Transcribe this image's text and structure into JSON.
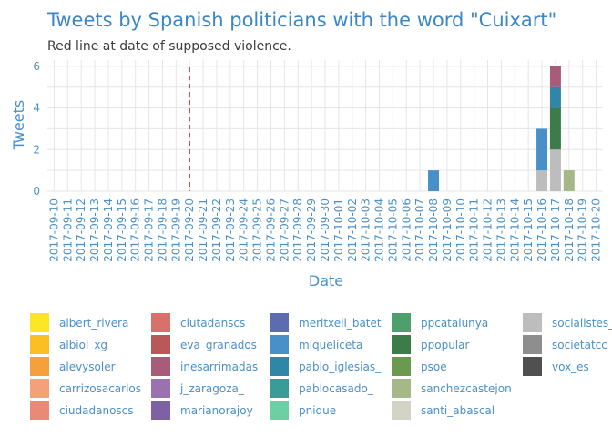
{
  "chart_data": {
    "type": "bar",
    "stacked": true,
    "title": "Tweets by Spanish politicians with the word \"Cuixart\"",
    "subtitle": "Red line at date of supposed violence.",
    "xlabel": "Date",
    "ylabel": "Tweets",
    "ylim": [
      0,
      6.3
    ],
    "yticks": [
      0,
      2,
      4,
      6
    ],
    "grid": true,
    "legend_placement": "bottom",
    "reference_line": {
      "date": "2017-09-20",
      "color": "#e8453c"
    },
    "categories": [
      "2017-09-10",
      "2017-09-11",
      "2017-09-12",
      "2017-09-13",
      "2017-09-14",
      "2017-09-15",
      "2017-09-16",
      "2017-09-17",
      "2017-09-18",
      "2017-09-19",
      "2017-09-20",
      "2017-09-21",
      "2017-09-22",
      "2017-09-23",
      "2017-09-24",
      "2017-09-25",
      "2017-09-26",
      "2017-09-27",
      "2017-09-28",
      "2017-09-29",
      "2017-09-30",
      "2017-10-01",
      "2017-10-02",
      "2017-10-03",
      "2017-10-04",
      "2017-10-05",
      "2017-10-06",
      "2017-10-07",
      "2017-10-08",
      "2017-10-09",
      "2017-10-10",
      "2017-10-11",
      "2017-10-12",
      "2017-10-13",
      "2017-10-14",
      "2017-10-15",
      "2017-10-16",
      "2017-10-17",
      "2017-10-18",
      "2017-10-19",
      "2017-10-20"
    ],
    "bars": [
      {
        "date": "2017-10-08",
        "stack": [
          {
            "name": "miqueliceta",
            "value": 1
          }
        ]
      },
      {
        "date": "2017-10-16",
        "stack": [
          {
            "name": "socialistes_",
            "value": 1
          },
          {
            "name": "miqueliceta",
            "value": 2
          }
        ]
      },
      {
        "date": "2017-10-17",
        "stack": [
          {
            "name": "socialistes_",
            "value": 2
          },
          {
            "name": "ppopular",
            "value": 2
          },
          {
            "name": "pablo_iglesias_",
            "value": 1
          },
          {
            "name": "inesarrimadas",
            "value": 1
          }
        ]
      },
      {
        "date": "2017-10-18",
        "stack": [
          {
            "name": "sanchezcastejon",
            "value": 1
          }
        ]
      }
    ],
    "series": [
      {
        "name": "albert_rivera",
        "color": "#fde725"
      },
      {
        "name": "albiol_xg",
        "color": "#fbbf24"
      },
      {
        "name": "alevysoler",
        "color": "#f5a03a"
      },
      {
        "name": "carrizosacarlos",
        "color": "#f4a07a"
      },
      {
        "name": "ciudadanoscs",
        "color": "#e98a78"
      },
      {
        "name": "ciutadanscs",
        "color": "#d9706a"
      },
      {
        "name": "eva_granados",
        "color": "#b85858"
      },
      {
        "name": "inesarrimadas",
        "color": "#a85c7a"
      },
      {
        "name": "j_zaragoza_",
        "color": "#9b72b0"
      },
      {
        "name": "marianorajoy",
        "color": "#7e60a4"
      },
      {
        "name": "meritxell_batet",
        "color": "#5b6db0"
      },
      {
        "name": "miqueliceta",
        "color": "#4a90c8"
      },
      {
        "name": "pablo_iglesias_",
        "color": "#2f86a6"
      },
      {
        "name": "pablocasado_",
        "color": "#3a9c96"
      },
      {
        "name": "pnique",
        "color": "#6fcfa4"
      },
      {
        "name": "ppcatalunya",
        "color": "#4e9f6e"
      },
      {
        "name": "ppopular",
        "color": "#3c7c4a"
      },
      {
        "name": "psoe",
        "color": "#6a9a4e"
      },
      {
        "name": "sanchezcastejon",
        "color": "#a4b888"
      },
      {
        "name": "santi_abascal",
        "color": "#d4d4c6"
      },
      {
        "name": "socialistes_",
        "color": "#bdbdbd"
      },
      {
        "name": "societatcc",
        "color": "#8e8e8e"
      },
      {
        "name": "vox_es",
        "color": "#505050"
      }
    ]
  }
}
